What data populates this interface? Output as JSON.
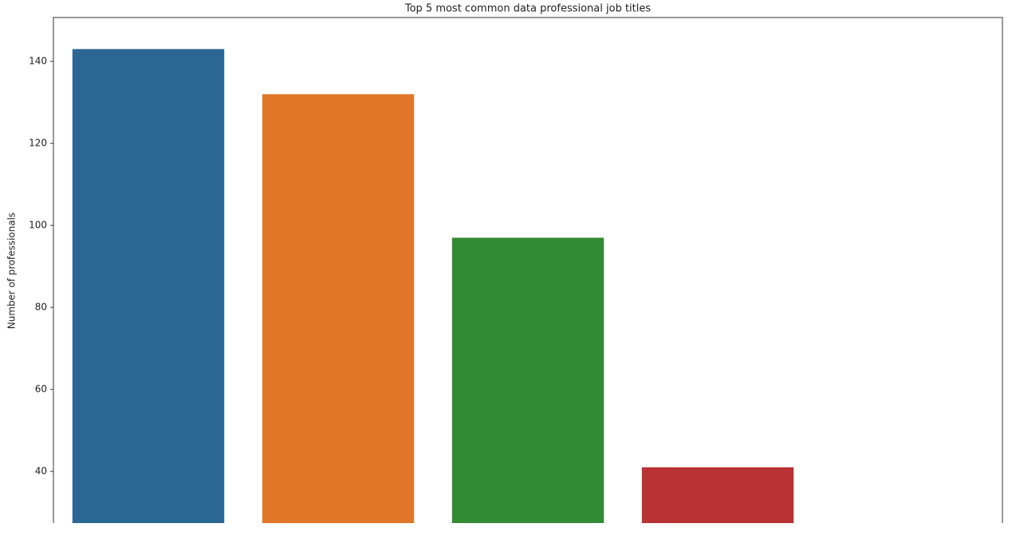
{
  "chart_data": {
    "type": "bar",
    "title": "Top 5 most common data professional job titles",
    "y_label": "Number of professionals",
    "categories": [
      null,
      null,
      null,
      null,
      null
    ],
    "values": [
      143,
      132,
      97,
      41,
      null
    ],
    "colors": [
      "#2c6794",
      "#e07628",
      "#338a34",
      "#b93335",
      "#8d6bb0"
    ],
    "ylim": [
      27.4,
      150.7
    ],
    "yticks": [
      40,
      60,
      80,
      100,
      120,
      140
    ],
    "grid": false
  }
}
